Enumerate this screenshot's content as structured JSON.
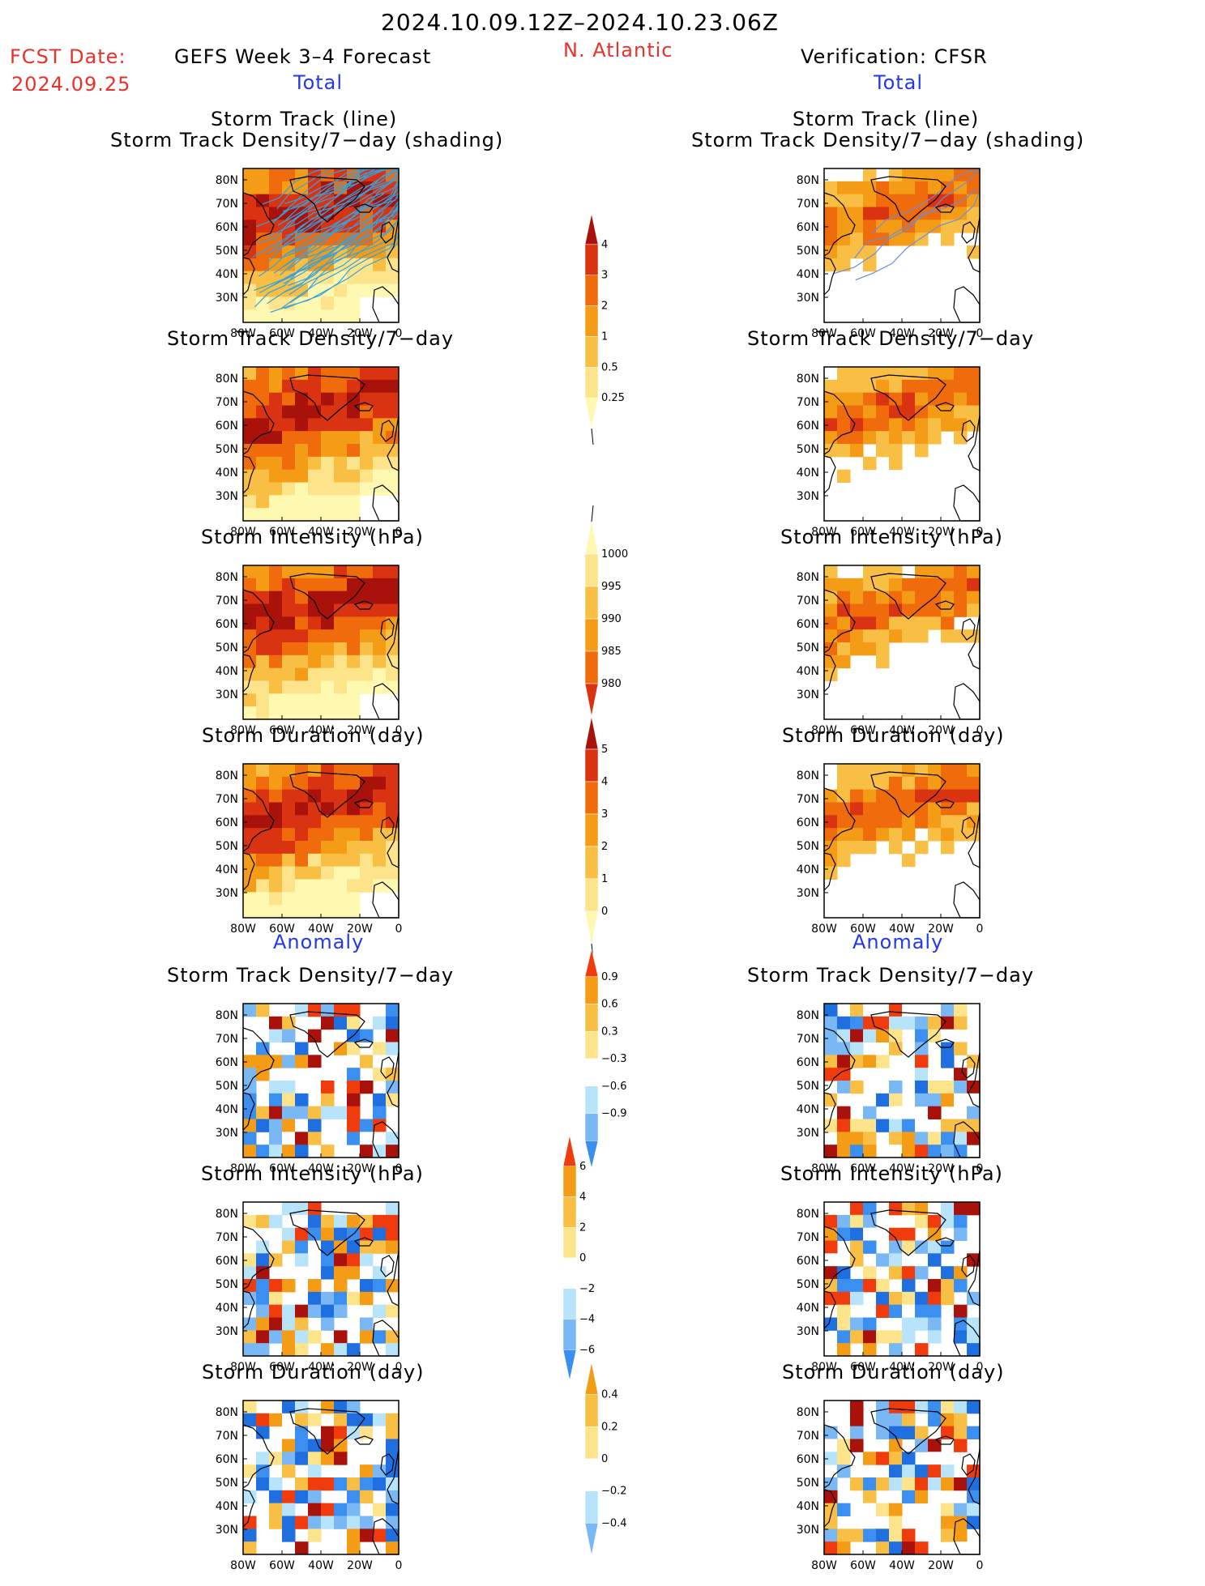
{
  "header": {
    "period": "2024.10.09.12Z–2024.10.23.06Z",
    "fcst_label": "FCST Date:",
    "fcst_date": "2024.09.25",
    "left_title": "GEFS Week 3–4 Forecast",
    "region": "N. Atlantic",
    "right_title": "Verification: CFSR"
  },
  "sections": {
    "total": "Total",
    "anomaly": "Anomaly"
  },
  "panel_titles": {
    "track_line": "Storm Track (line)",
    "track_shading": "Storm Track Density/7−day (shading)",
    "density": "Storm Track Density/7−day",
    "intensity": "Storm Intensity (hPa)",
    "duration": "Storm Duration (day)"
  },
  "axes": {
    "lat_ticks": [
      "80N",
      "70N",
      "60N",
      "50N",
      "40N",
      "30N"
    ],
    "lon_ticks": [
      "80W",
      "60W",
      "40W",
      "20W",
      "0"
    ]
  },
  "colorbars": {
    "density_total": [
      "4",
      "3",
      "2",
      "1",
      "0.5",
      "0.25"
    ],
    "intensity_total": [
      "1000",
      "995",
      "990",
      "985",
      "980"
    ],
    "duration_total": [
      "5",
      "4",
      "3",
      "2",
      "1",
      "0"
    ],
    "density_anom": [
      "0.9",
      "0.6",
      "0.3",
      "−0.3",
      "−0.6",
      "−0.9"
    ],
    "intensity_anom": [
      "6",
      "4",
      "2",
      "0",
      "−2",
      "−4",
      "−6"
    ],
    "duration_anom": [
      "0.4",
      "0.2",
      "0",
      "−0.2",
      "−0.4"
    ]
  },
  "colors": {
    "total_scale": [
      "#fff8b0",
      "#fde38a",
      "#f9bf45",
      "#f59c16",
      "#f06b0c",
      "#d93312",
      "#a8120b"
    ],
    "anom_scale": [
      "#1f6fe0",
      "#3b8ff0",
      "#7ab8f5",
      "#b8e4fb",
      "#ffffff",
      "#fde38a",
      "#f9bf45",
      "#f59c16",
      "#f03c0c",
      "#a8120b"
    ],
    "track_line": "#33a3e0",
    "verif_track_line": "#6a8fd8"
  }
}
